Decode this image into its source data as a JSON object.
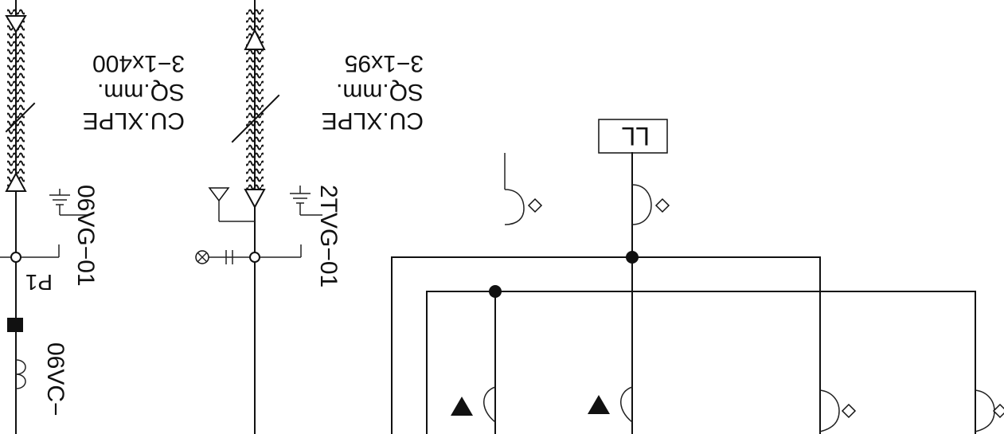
{
  "diagram": {
    "colors": {
      "line": "#111111",
      "background": "#ffffff"
    },
    "feeders": {
      "left": {
        "cable": [
          "3−1x400",
          "SQ.mm.",
          "CU.XLPE"
        ],
        "tag_main": "06VG−01",
        "tag_secondary": "06VC−",
        "mark": "P1"
      },
      "right": {
        "cable": [
          "3−1x95",
          "SQ.mm.",
          "CU.XLPE"
        ],
        "tag_main": "2TVG−01"
      }
    },
    "relay_box": {
      "label": "LL"
    }
  }
}
